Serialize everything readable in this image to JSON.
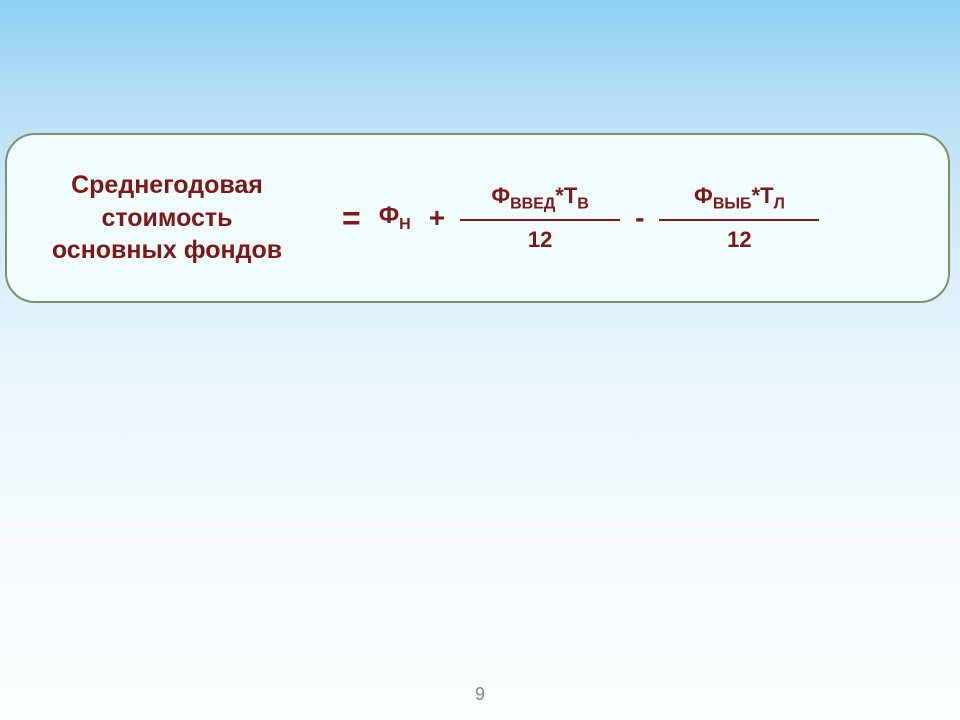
{
  "formula": {
    "label_line1": "Среднегодовая",
    "label_line2": "стоимость",
    "label_line3": "основных фондов",
    "equals": "=",
    "fn_base": "Ф",
    "fn_sub": "Н",
    "plus": "+",
    "frac1_num_f": "Ф",
    "frac1_num_fsub": "ВВЕД",
    "frac1_num_star": "*",
    "frac1_num_t": "Т",
    "frac1_num_tsub": "В",
    "frac1_den": "12",
    "minus": "-",
    "frac2_num_f": "Ф",
    "frac2_num_fsub": "ВЫБ",
    "frac2_num_star": "*",
    "frac2_num_t": "Т",
    "frac2_num_tsub": "Л",
    "frac2_den": "12"
  },
  "page_number": "9",
  "colors": {
    "text_color": "#7c1818",
    "box_bg": "#f1fcfc",
    "box_border": "#7a9268",
    "bg_gradient_top": "#8dcef0",
    "bg_gradient_bottom": "#fbfefe"
  }
}
